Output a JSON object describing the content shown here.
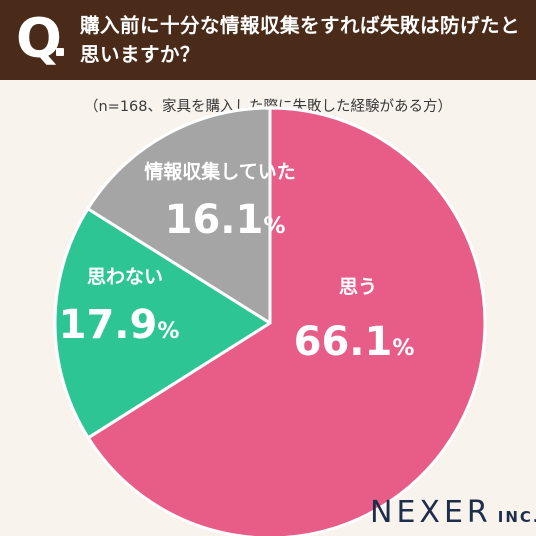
{
  "header": {
    "q_letter": "Q",
    "question": "購入前に十分な情報収集をすれば失敗は防げたと思いますか？"
  },
  "note": "（n=168、家具を購入した際に失敗した経験がある方）",
  "brand": {
    "name": "NEXER",
    "suffix": "INC."
  },
  "colors": {
    "header_bg": "#4a2b1a",
    "background": "#f8f3ed",
    "slice_yes": "#e85d87",
    "slice_no": "#2ec595",
    "slice_info": "#a5a5a5"
  },
  "chart_data": {
    "type": "pie",
    "title": "購入前に十分な情報収集をすれば失敗は防げたと思いますか？",
    "unit": "%",
    "slices": [
      {
        "label": "思う",
        "value": 66.1,
        "value_text": "66.1",
        "color": "#e85d87"
      },
      {
        "label": "思わない",
        "value": 17.9,
        "value_text": "17.9",
        "color": "#2ec595"
      },
      {
        "label": "情報収集していた",
        "value": 16.1,
        "value_text": "16.1",
        "color": "#a5a5a5"
      }
    ]
  }
}
